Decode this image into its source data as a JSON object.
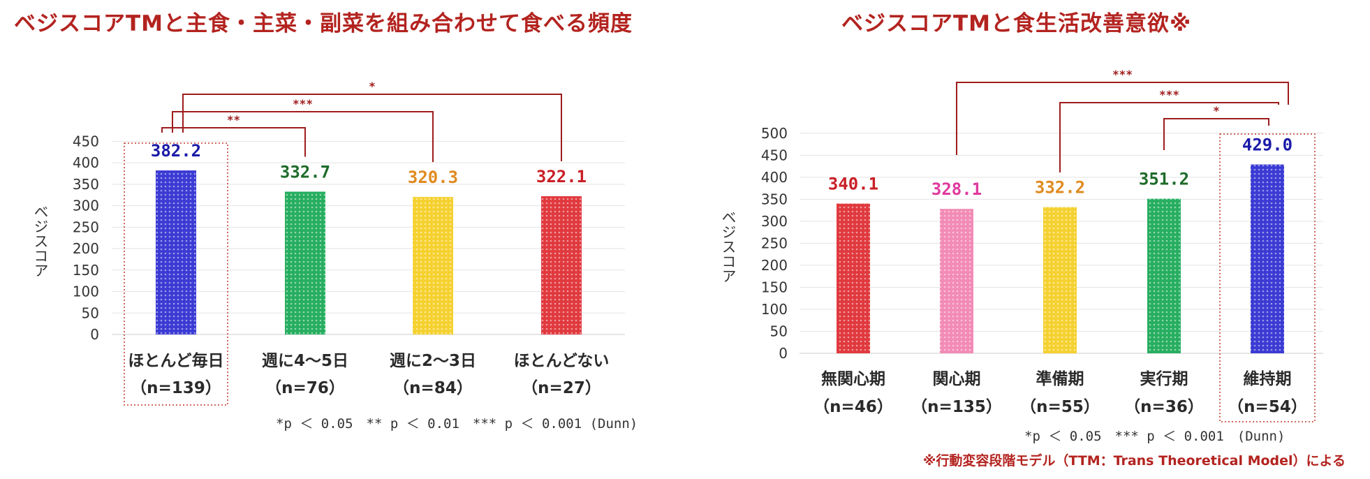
{
  "titles": {
    "left": "ベジスコアTMと主食・主菜・副菜を組み合わせて食べる頻度",
    "right": "ベジスコアTMと食生活改善意欲※"
  },
  "footnote": "※行動変容段階モデル（TTM：Trans Theoretical Model）による",
  "colors": {
    "title": "#b3231f",
    "bracket": "#9e1c1c",
    "highlight_box": "#c0392b",
    "blue": "#3b3bd4",
    "green": "#27ae60",
    "yellow": "#f5d130",
    "red": "#e0393e",
    "pink": "#f28bb5"
  },
  "chart_data": [
    {
      "type": "bar",
      "ylabel": "ベジスコア",
      "ylim": [
        0,
        450
      ],
      "yticks": [
        0,
        50,
        100,
        150,
        200,
        250,
        300,
        350,
        400,
        450
      ],
      "grid": true,
      "categories": [
        "ほとんど毎日",
        "週に4～5日",
        "週に2～3日",
        "ほとんどない"
      ],
      "n_labels": [
        "（n=139）",
        "（n=76）",
        "（n=84）",
        "（n=27）"
      ],
      "values": [
        382.2,
        332.7,
        320.3,
        322.1
      ],
      "value_labels": [
        "382.2",
        "332.7",
        "320.3",
        "322.1"
      ],
      "bar_colors": [
        "blue",
        "green",
        "yellow",
        "red"
      ],
      "value_colors": [
        "#1a1aa8",
        "#1e6b2a",
        "#e08a1e",
        "#c91f26"
      ],
      "highlight_index": 0,
      "significance": [
        {
          "from": 0,
          "to": 1,
          "label": "**"
        },
        {
          "from": 0,
          "to": 2,
          "label": "***"
        },
        {
          "from": 0,
          "to": 3,
          "label": "*"
        }
      ],
      "note": "*p ＜ 0.05　** p ＜ 0.01　*** p ＜ 0.001 (Dunn)"
    },
    {
      "type": "bar",
      "ylabel": "ベジスコア",
      "ylim": [
        0,
        500
      ],
      "yticks": [
        0,
        50,
        100,
        150,
        200,
        250,
        300,
        350,
        400,
        450,
        500
      ],
      "grid": true,
      "categories": [
        "無関心期",
        "関心期",
        "準備期",
        "実行期",
        "維持期"
      ],
      "n_labels": [
        "（n=46）",
        "（n=135）",
        "（n=55）",
        "（n=36）",
        "（n=54）"
      ],
      "values": [
        340.1,
        328.1,
        332.2,
        351.2,
        429.0
      ],
      "value_labels": [
        "340.1",
        "328.1",
        "332.2",
        "351.2",
        "429.0"
      ],
      "bar_colors": [
        "red",
        "pink",
        "yellow",
        "green",
        "blue"
      ],
      "value_colors": [
        "#c91f26",
        "#e0399e",
        "#e08a1e",
        "#1e6b2a",
        "#1a1aa8"
      ],
      "highlight_index": 4,
      "significance": [
        {
          "from": 1,
          "to": 4,
          "label": "***"
        },
        {
          "from": 2,
          "to": 4,
          "label": "***"
        },
        {
          "from": 3,
          "to": 4,
          "label": "*"
        }
      ],
      "note": "*p ＜ 0.05　*** p ＜ 0.001　(Dunn)"
    }
  ]
}
